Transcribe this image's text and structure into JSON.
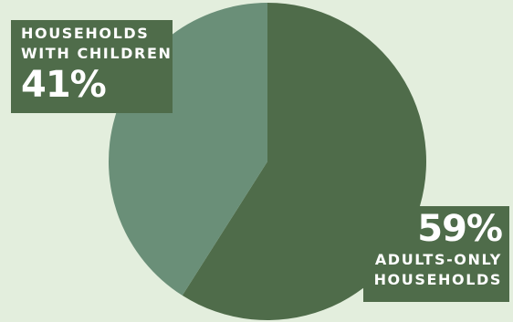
{
  "chart_data": {
    "type": "pie",
    "slices": [
      {
        "name": "Adults-only households",
        "value": 59,
        "label_text": "ADULTS-ONLY\nHOUSEHOLDS",
        "value_label": "59%",
        "color": "#4f6c4a"
      },
      {
        "name": "Households with children",
        "value": 41,
        "label_text": "HOUSEHOLDS\nWITH CHILDREN",
        "value_label": "41%",
        "color": "#6a8f78"
      }
    ],
    "start_angle": "12 o'clock, clockwise",
    "label_box_color": "#4f6c4a",
    "background": "#e3eedd"
  }
}
